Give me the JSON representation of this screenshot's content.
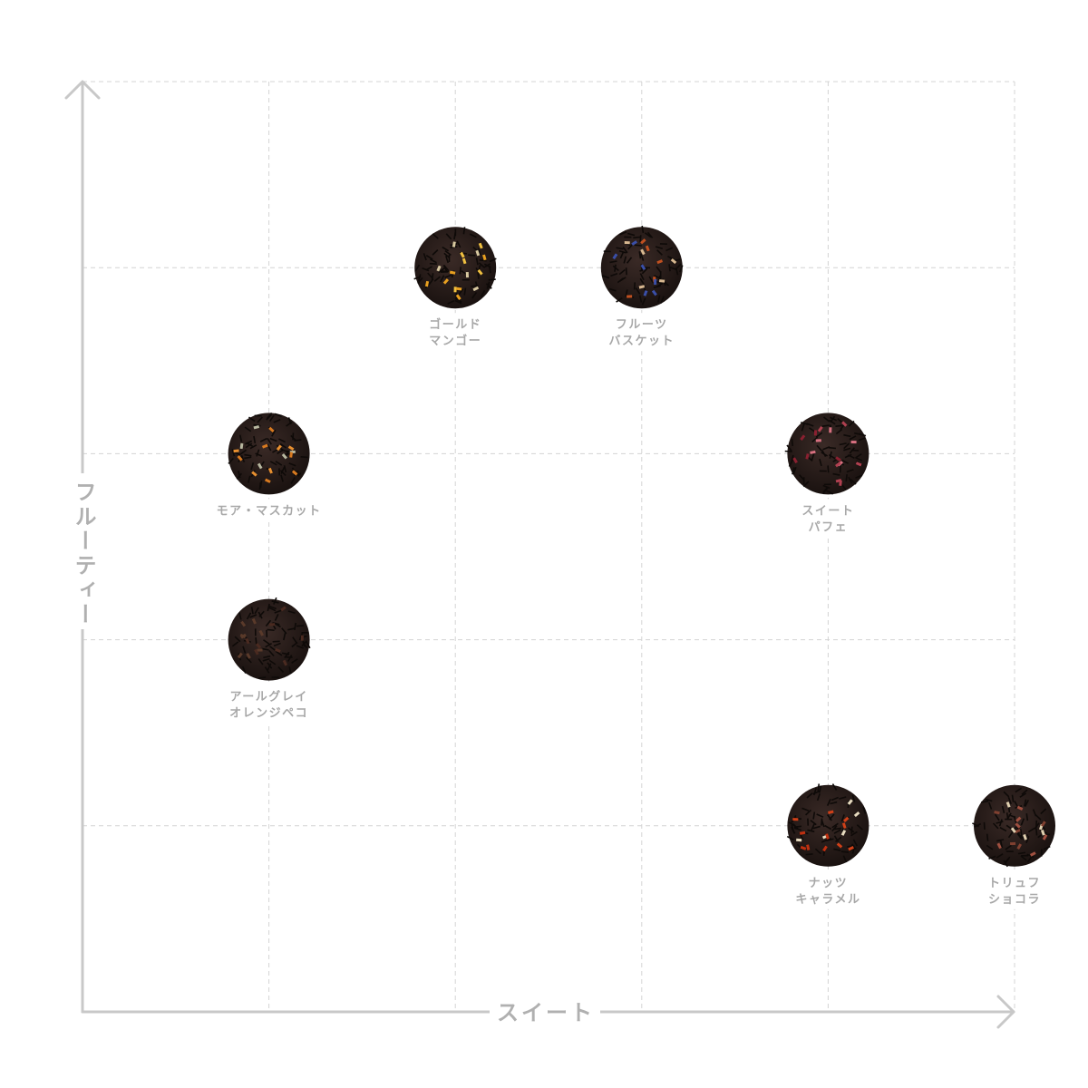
{
  "chart_data": {
    "type": "scatter",
    "xlabel": "スイート",
    "ylabel": "フルーティー",
    "xlim": [
      0,
      5
    ],
    "ylim": [
      0,
      5
    ],
    "grid": true,
    "points": [
      {
        "name": [
          "ゴールド",
          "マンゴー"
        ],
        "x": 2,
        "y": 4,
        "speck_colors": [
          "#e8a020",
          "#d8c9a0",
          "#f0c040"
        ]
      },
      {
        "name": [
          "フルーツ",
          "バスケット"
        ],
        "x": 3,
        "y": 4,
        "speck_colors": [
          "#3a4fa8",
          "#c05020",
          "#d8b890"
        ]
      },
      {
        "name": [
          "モア・マスカット"
        ],
        "x": 1,
        "y": 3,
        "speck_colors": [
          "#d87a20",
          "#b8b8a0",
          "#e89030"
        ]
      },
      {
        "name": [
          "スイート",
          "パフェ"
        ],
        "x": 4,
        "y": 3,
        "speck_colors": [
          "#b04050",
          "#d87080",
          "#8a2030"
        ]
      },
      {
        "name": [
          "アールグレイ",
          "オレンジペコ"
        ],
        "x": 1,
        "y": 2,
        "speck_colors": [
          "#4a2a20",
          "#5a3a2a"
        ]
      },
      {
        "name": [
          "ナッツ",
          "キャラメル"
        ],
        "x": 4,
        "y": 1,
        "speck_colors": [
          "#d04018",
          "#e8dcc0",
          "#c03010"
        ]
      },
      {
        "name": [
          "トリュフ",
          "ショコラ"
        ],
        "x": 5,
        "y": 1,
        "speck_colors": [
          "#a05040",
          "#e0d0b0",
          "#804030"
        ]
      }
    ]
  }
}
